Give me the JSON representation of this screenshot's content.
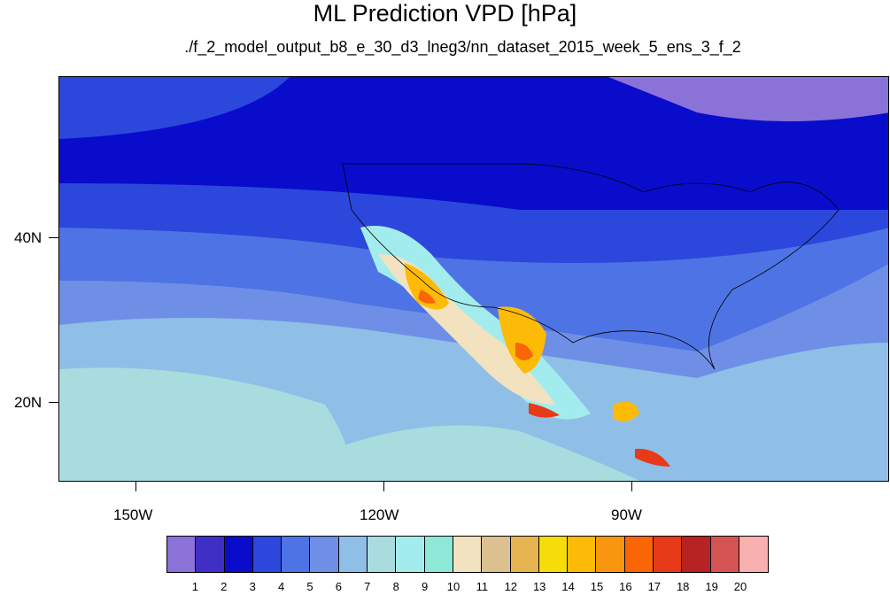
{
  "title": "ML Prediction VPD [hPa]",
  "subtitle": "./f_2_model_output_b8_e_30_d3_lneg3/nn_dataset_2015_week_5_ens_3_f_2",
  "map": {
    "lat_labels": [
      "40N",
      "20N"
    ],
    "lon_labels": [
      "150W",
      "120W",
      "90W"
    ]
  },
  "colorbar": {
    "labels": [
      "1",
      "2",
      "3",
      "4",
      "5",
      "6",
      "7",
      "8",
      "9",
      "10",
      "11",
      "12",
      "13",
      "14",
      "15",
      "16",
      "17",
      "18",
      "19",
      "20"
    ],
    "colors": [
      "#8a72d8",
      "#3f2fc4",
      "#0a0ccb",
      "#2c47dc",
      "#4d73e4",
      "#6f8fe6",
      "#8fbfe6",
      "#a9dcdf",
      "#a3ecee",
      "#8ee8d8",
      "#f2e2c0",
      "#dcc090",
      "#e6b450",
      "#f6dc08",
      "#fdba07",
      "#f9960f",
      "#fa6606",
      "#e63a18",
      "#b72222",
      "#d45454",
      "#f8b0b0"
    ]
  }
}
